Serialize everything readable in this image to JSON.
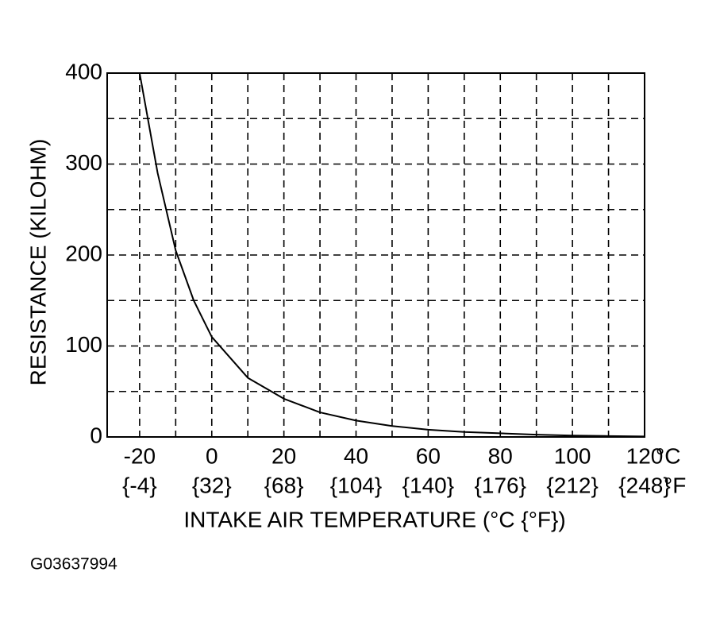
{
  "chart_data": {
    "type": "line",
    "x_label": "INTAKE AIR TEMPERATURE (°C {°F})",
    "y_label": "RESISTANCE (KILOHM)",
    "x_unit": "°C",
    "x2_unit": "°F",
    "caption": "G03637994",
    "x": [
      -20,
      -15,
      -10,
      -5,
      0,
      10,
      20,
      30,
      40,
      50,
      60,
      70,
      80,
      90,
      100,
      110,
      120
    ],
    "series": [
      {
        "name": "Resistance",
        "color": "#000000",
        "values": [
          400,
          290,
          205,
          150,
          110,
          65,
          42,
          27,
          18,
          12,
          8,
          5.5,
          4,
          2.5,
          1.5,
          1,
          0.5
        ]
      }
    ],
    "xlim": [
      -29,
      120
    ],
    "ylim": [
      0,
      400
    ],
    "xticks": [
      -20,
      0,
      20,
      40,
      60,
      80,
      100,
      120
    ],
    "x2ticks": [
      {
        "value": -20,
        "label": "{-4}"
      },
      {
        "value": 0,
        "label": "{32}"
      },
      {
        "value": 20,
        "label": "{68}"
      },
      {
        "value": 40,
        "label": "{104}"
      },
      {
        "value": 60,
        "label": "{140}"
      },
      {
        "value": 80,
        "label": "{176}"
      },
      {
        "value": 100,
        "label": "{212}"
      },
      {
        "value": 120,
        "label": "{248}"
      }
    ],
    "yticks": [
      0,
      100,
      200,
      300,
      400
    ],
    "x_minor_grid": [
      -10,
      10,
      30,
      50,
      70,
      90,
      110
    ],
    "y_minor_grid": [
      50,
      150,
      250,
      350
    ],
    "grid": true
  }
}
